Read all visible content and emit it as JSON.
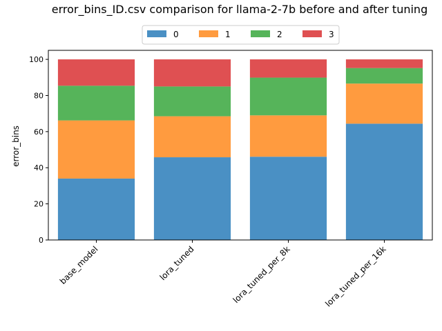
{
  "chart_data": {
    "type": "bar",
    "stacked": true,
    "title": "error_bins_ID.csv comparison for llama-2-7b before and after tuning",
    "xlabel": "",
    "ylabel": "error_bins",
    "ylim": [
      0,
      105
    ],
    "yticks": [
      0,
      20,
      40,
      60,
      80,
      100
    ],
    "grid": false,
    "legend_position": "top-center",
    "categories": [
      "base_model",
      "lora_tuned",
      "lora_tuned_per_8k",
      "lora_tuned_per_16k"
    ],
    "series": [
      {
        "name": "0",
        "color": "#4a90c4",
        "values": [
          34.0,
          45.8,
          46.1,
          64.4
        ]
      },
      {
        "name": "1",
        "color": "#ff9b3f",
        "values": [
          32.2,
          22.7,
          22.9,
          22.2
        ]
      },
      {
        "name": "2",
        "color": "#56b45a",
        "values": [
          19.2,
          16.5,
          20.9,
          8.6
        ]
      },
      {
        "name": "3",
        "color": "#df5052",
        "values": [
          14.6,
          15.0,
          10.1,
          4.8
        ]
      }
    ]
  }
}
